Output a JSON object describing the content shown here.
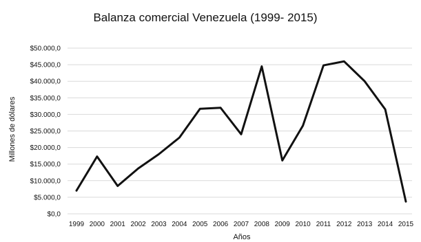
{
  "chart_data": {
    "type": "line",
    "title": "Balanza comercial Venezuela (1999- 2015)",
    "xlabel": "Años",
    "ylabel": "Millones de dólares",
    "categories": [
      "1999",
      "2000",
      "2001",
      "2002",
      "2003",
      "2004",
      "2005",
      "2006",
      "2007",
      "2008",
      "2009",
      "2010",
      "2011",
      "2012",
      "2013",
      "2014",
      "2015"
    ],
    "series": [
      {
        "values": [
          7000,
          17300,
          8400,
          13700,
          18000,
          23000,
          31700,
          32000,
          24000,
          44500,
          16100,
          26600,
          44800,
          46000,
          40000,
          31500,
          3700
        ],
        "color": "#111111"
      }
    ],
    "ylim": [
      0,
      50000
    ],
    "yticks": [
      "$0,0",
      "$5.000,0",
      "$10.000,0",
      "$15.000,0",
      "$20.000,0",
      "$25.000,0",
      "$30.000,0",
      "$35.000,0",
      "$40.000,0",
      "$45.000,0",
      "$50.000,0"
    ],
    "ytick_values": [
      0,
      5000,
      10000,
      15000,
      20000,
      25000,
      30000,
      35000,
      40000,
      45000,
      50000
    ],
    "grid": true,
    "legend": false
  }
}
